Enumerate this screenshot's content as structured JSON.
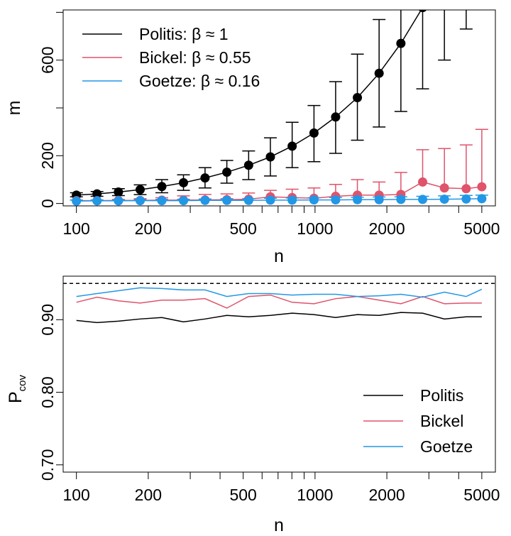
{
  "chart_data": [
    {
      "type": "scatter",
      "xlabel": "n",
      "ylabel": "m",
      "xscale": "log",
      "xlim": [
        88,
        5700
      ],
      "ylim": [
        -10,
        810
      ],
      "xticks": [
        100,
        200,
        500,
        1000,
        2000,
        5000
      ],
      "xtick_labels": [
        "100",
        "200",
        "500",
        "1000",
        "2000",
        "5000"
      ],
      "yticks": [
        0,
        200,
        600
      ],
      "ytick_labels": [
        "0",
        "200",
        "600"
      ],
      "legend_position": "top-left",
      "x": [
        100,
        122,
        150,
        185,
        228,
        281,
        346,
        427,
        527,
        650,
        802,
        990,
        1220,
        1505,
        1856,
        2290,
        2825,
        3485,
        4300,
        5000
      ],
      "series": [
        {
          "name": "Politis: β ≈ 1",
          "color": "#000000",
          "values": [
            35,
            40,
            48,
            58,
            71,
            87,
            107,
            131,
            160,
            195,
            240,
            295,
            362,
            443,
            545,
            670,
            820,
            null,
            null,
            null
          ],
          "lower": [
            28,
            30,
            33,
            37,
            45,
            55,
            65,
            85,
            100,
            115,
            150,
            175,
            210,
            265,
            320,
            385,
            480,
            600,
            730,
            null
          ],
          "upper": [
            45,
            50,
            62,
            78,
            100,
            120,
            150,
            180,
            220,
            275,
            340,
            410,
            510,
            625,
            770,
            900,
            900,
            900,
            900,
            null
          ],
          "fit_line": true
        },
        {
          "name": "Bickel: β ≈ 0.55",
          "color": "#DF536B",
          "values": [
            12,
            12,
            13,
            13,
            14,
            14,
            15,
            16,
            18,
            28,
            25,
            22,
            30,
            35,
            35,
            38,
            90,
            65,
            62,
            70
          ],
          "lower": [
            12,
            12,
            13,
            13,
            14,
            14,
            15,
            16,
            18,
            28,
            25,
            22,
            30,
            35,
            35,
            38,
            90,
            65,
            62,
            70
          ],
          "upper": [
            15,
            15,
            17,
            20,
            24,
            32,
            38,
            40,
            44,
            55,
            60,
            65,
            80,
            100,
            90,
            130,
            225,
            230,
            245,
            310
          ],
          "fit_line": true
        },
        {
          "name": "Goetze: β ≈ 0.16",
          "color": "#2297E6",
          "values": [
            10,
            11,
            11,
            12,
            12,
            12,
            13,
            13,
            13,
            14,
            14,
            15,
            15,
            16,
            16,
            17,
            17,
            18,
            19,
            20
          ],
          "lower": [
            10,
            11,
            11,
            12,
            12,
            12,
            13,
            13,
            13,
            14,
            14,
            15,
            15,
            16,
            16,
            17,
            17,
            18,
            19,
            20
          ],
          "upper": [
            14,
            15,
            15,
            16,
            17,
            18,
            19,
            20,
            21,
            22,
            23,
            24,
            25,
            26,
            27,
            28,
            30,
            32,
            34,
            35
          ],
          "fit_line": true
        }
      ]
    },
    {
      "type": "line",
      "xlabel": "n",
      "ylabel": "P",
      "ylabel_sub": "cov",
      "xscale": "log",
      "xlim": [
        88,
        5700
      ],
      "ylim": [
        0.69,
        0.96
      ],
      "xticks": [
        100,
        200,
        500,
        1000,
        2000,
        5000
      ],
      "xtick_labels": [
        "100",
        "200",
        "500",
        "1000",
        "2000",
        "5000"
      ],
      "yticks": [
        0.7,
        0.8,
        0.9
      ],
      "ytick_labels": [
        "0.70",
        "0.80",
        "0.90"
      ],
      "reference_line": 0.95,
      "legend_position": "bottom-right",
      "x": [
        100,
        122,
        150,
        185,
        228,
        281,
        346,
        427,
        527,
        650,
        802,
        990,
        1220,
        1505,
        1856,
        2290,
        2825,
        3485,
        4300,
        5000
      ],
      "series": [
        {
          "name": "Politis",
          "color": "#000000",
          "values": [
            0.899,
            0.896,
            0.898,
            0.901,
            0.903,
            0.897,
            0.901,
            0.906,
            0.904,
            0.906,
            0.909,
            0.907,
            0.903,
            0.907,
            0.906,
            0.91,
            0.909,
            0.901,
            0.904,
            0.904
          ]
        },
        {
          "name": "Bickel",
          "color": "#DF536B",
          "values": [
            0.924,
            0.931,
            0.926,
            0.923,
            0.927,
            0.927,
            0.929,
            0.916,
            0.932,
            0.934,
            0.924,
            0.922,
            0.929,
            0.932,
            0.927,
            0.922,
            0.932,
            0.922,
            0.923,
            0.923
          ]
        },
        {
          "name": "Goetze",
          "color": "#2297E6",
          "values": [
            0.932,
            0.936,
            0.94,
            0.944,
            0.943,
            0.941,
            0.941,
            0.932,
            0.936,
            0.936,
            0.934,
            0.935,
            0.935,
            0.932,
            0.933,
            0.935,
            0.931,
            0.938,
            0.932,
            0.942
          ]
        }
      ]
    }
  ]
}
